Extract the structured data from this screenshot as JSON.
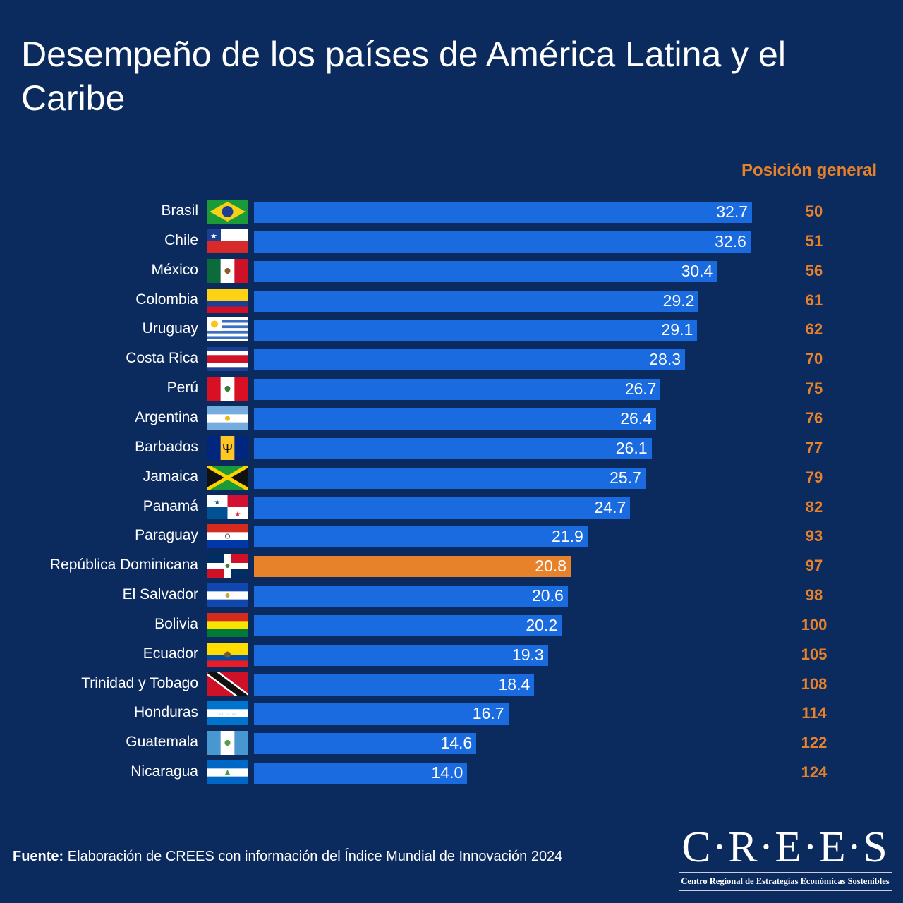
{
  "title": "Desempeño de los países de América Latina y el Caribe",
  "rank_header": "Posición general",
  "colors": {
    "background": "#0b2a5e",
    "bar": "#1a6be0",
    "highlight": "#e8822a",
    "rank": "#e8822a"
  },
  "chart_data": {
    "type": "bar",
    "orientation": "horizontal",
    "title": "Desempeño de los países de América Latina y el Caribe",
    "categories": [
      "Brasil",
      "Chile",
      "México",
      "Colombia",
      "Uruguay",
      "Costa Rica",
      "Perú",
      "Argentina",
      "Barbados",
      "Jamaica",
      "Panamá",
      "Paraguay",
      "República Dominicana",
      "El Salvador",
      "Bolivia",
      "Ecuador",
      "Trinidad y Tobago",
      "Honduras",
      "Guatemala",
      "Nicaragua"
    ],
    "values": [
      32.7,
      32.6,
      30.4,
      29.2,
      29.1,
      28.3,
      26.7,
      26.4,
      26.1,
      25.7,
      24.7,
      21.9,
      20.8,
      20.6,
      20.2,
      19.3,
      18.4,
      16.7,
      14.6,
      14.0
    ],
    "value_labels": [
      "32.7",
      "32.6",
      "30.4",
      "29.2",
      "29.1",
      "28.3",
      "26.7",
      "26.4",
      "26.1",
      "25.7",
      "24.7",
      "21.9",
      "20.8",
      "20.6",
      "20.2",
      "19.3",
      "18.4",
      "16.7",
      "14.6",
      "14.0"
    ],
    "ranks": [
      "50",
      "51",
      "56",
      "61",
      "62",
      "70",
      "75",
      "76",
      "77",
      "79",
      "82",
      "93",
      "97",
      "98",
      "100",
      "105",
      "108",
      "114",
      "122",
      "124"
    ],
    "highlighted": "República Dominicana",
    "xlim": [
      0,
      32.7
    ],
    "grid": false,
    "legend": "none"
  },
  "source": {
    "label": "Fuente:",
    "text": " Elaboración de CREES con información del Índice Mundial de Innovación 2024"
  },
  "logo": {
    "main": "C·R·E·E·S",
    "sub": "Centro Regional de Estrategias Económicas Sostenibles"
  }
}
